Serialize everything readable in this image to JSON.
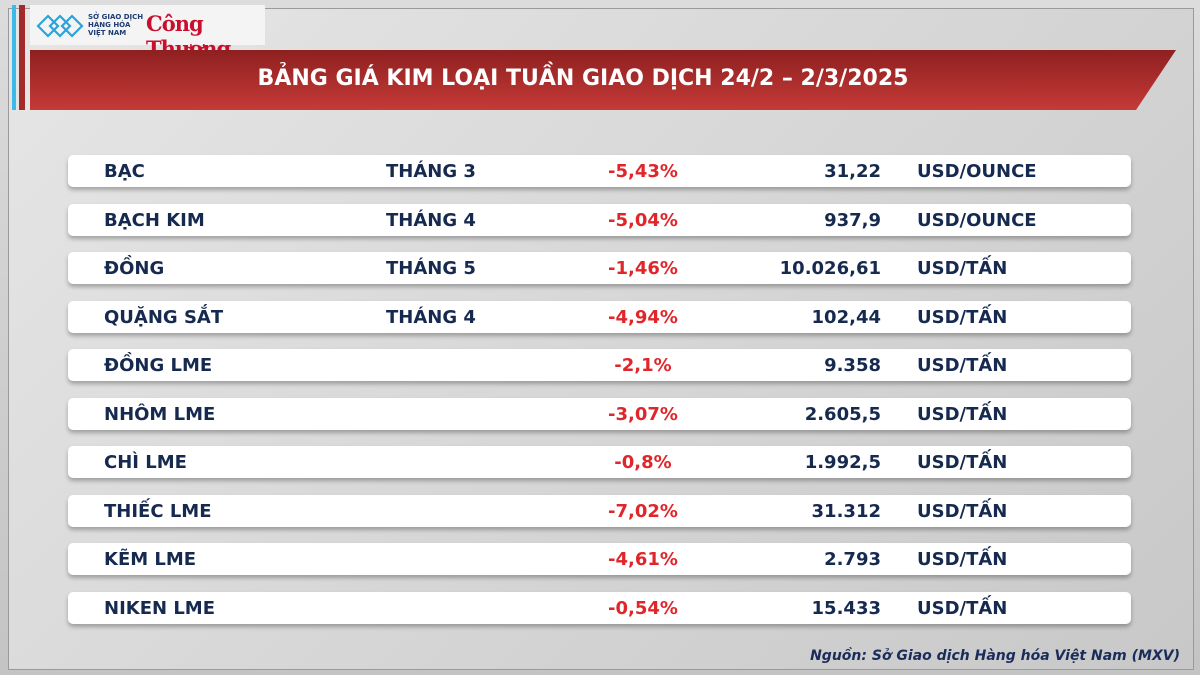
{
  "header": {
    "mxv_logo_text": [
      "SỞ GIAO DỊCH",
      "HÀNG HÓA",
      "VIỆT NAM"
    ],
    "congthuong_logo_text": "Công Thương",
    "title": "BẢNG GIÁ KIM LOẠI TUẦN GIAO DỊCH 24/2 – 2/3/2025"
  },
  "colors": {
    "banner": "#b3302e",
    "accent_blue": "#3db8e8",
    "negative": "#e0262b",
    "text": "#16294f"
  },
  "rows": [
    {
      "name": "BẠC",
      "month": "THÁNG 3",
      "change": "-5,43%",
      "price": "31,22",
      "unit": "USD/OUNCE"
    },
    {
      "name": "BẠCH KIM",
      "month": "THÁNG 4",
      "change": "-5,04%",
      "price": "937,9",
      "unit": "USD/OUNCE"
    },
    {
      "name": "ĐỒNG",
      "month": "THÁNG 5",
      "change": "-1,46%",
      "price": "10.026,61",
      "unit": "USD/TẤN"
    },
    {
      "name": "QUẶNG SẮT",
      "month": "THÁNG 4",
      "change": "-4,94%",
      "price": "102,44",
      "unit": "USD/TẤN"
    },
    {
      "name": "ĐỒNG LME",
      "month": "",
      "change": "-2,1%",
      "price": "9.358",
      "unit": "USD/TẤN"
    },
    {
      "name": "NHÔM LME",
      "month": "",
      "change": "-3,07%",
      "price": "2.605,5",
      "unit": "USD/TẤN"
    },
    {
      "name": "CHÌ LME",
      "month": "",
      "change": "-0,8%",
      "price": "1.992,5",
      "unit": "USD/TẤN"
    },
    {
      "name": "THIẾC LME",
      "month": "",
      "change": "-7,02%",
      "price": "31.312",
      "unit": "USD/TẤN"
    },
    {
      "name": "KẼM LME",
      "month": "",
      "change": "-4,61%",
      "price": "2.793",
      "unit": "USD/TẤN"
    },
    {
      "name": "NIKEN LME",
      "month": "",
      "change": "-0,54%",
      "price": "15.433",
      "unit": "USD/TẤN"
    }
  ],
  "footer": {
    "source": "Nguồn: Sở Giao dịch Hàng hóa Việt Nam (MXV)"
  }
}
